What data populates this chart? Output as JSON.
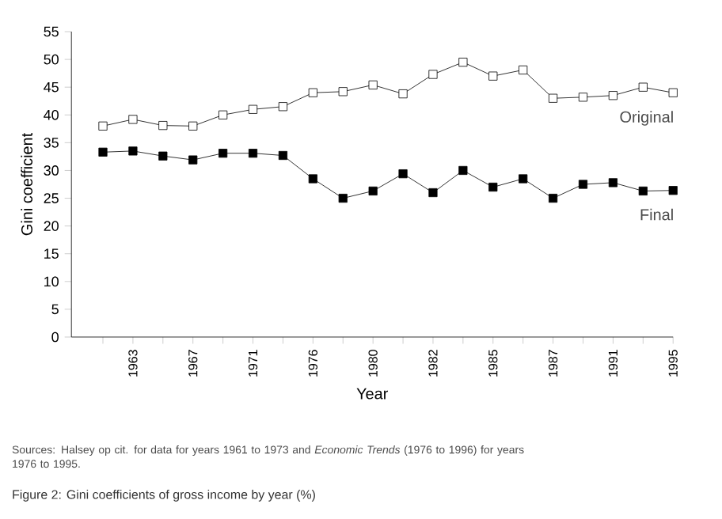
{
  "chart_data": {
    "type": "line",
    "title": "Figure 2:  Gini coefficients of gross income by year (%)",
    "xlabel": "Year",
    "ylabel": "Gini coefficient",
    "annotations": [
      "Sources: Halsey op cit. for data for years 1961 to 1973 and *Economic Trends* (1976 to 1996) for years 1976 to 1995."
    ],
    "categories": [
      null,
      "1963",
      null,
      "1967",
      null,
      "1971",
      null,
      "1976",
      null,
      "1980",
      null,
      "1982",
      null,
      "1985",
      null,
      "1987",
      null,
      "1991",
      null,
      "1995"
    ],
    "series": [
      {
        "name": "Original",
        "color": "#000000",
        "values": [
          38,
          39.2,
          38.1,
          38,
          40,
          41,
          41.5,
          44,
          44.2,
          45.4,
          43.8,
          47.3,
          49.5,
          47,
          48.1,
          43,
          43.2,
          43.5,
          45,
          44
        ]
      },
      {
        "name": "Final",
        "color": "#000000",
        "values": [
          33.3,
          33.5,
          32.6,
          31.9,
          33.1,
          33.1,
          32.7,
          28.5,
          25,
          26.3,
          29.4,
          26,
          30,
          27,
          28.5,
          25,
          27.5,
          27.8,
          26.3,
          26.4
        ]
      }
    ],
    "ylim": [
      0,
      55
    ],
    "yticks": [
      0,
      5,
      10,
      15,
      20,
      25,
      30,
      35,
      40,
      45,
      50,
      55
    ],
    "grid": false,
    "marker": "square"
  }
}
